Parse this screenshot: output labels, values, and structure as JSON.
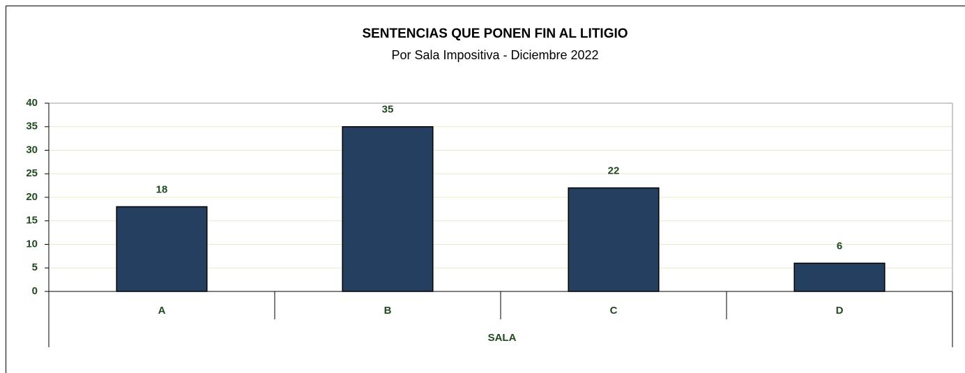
{
  "chart_data": {
    "type": "bar",
    "title": "SENTENCIAS QUE PONEN FIN AL LITIGIO",
    "subtitle": "Por Sala Impositiva - Diciembre 2022",
    "x_label": "SALA",
    "categories": [
      "A",
      "B",
      "C",
      "D"
    ],
    "values": [
      18,
      35,
      22,
      6
    ],
    "color": "#243f60",
    "ylim": [
      0,
      40
    ],
    "yticks": [
      0,
      5,
      10,
      15,
      20,
      25,
      30,
      35,
      40
    ],
    "grid": true
  }
}
